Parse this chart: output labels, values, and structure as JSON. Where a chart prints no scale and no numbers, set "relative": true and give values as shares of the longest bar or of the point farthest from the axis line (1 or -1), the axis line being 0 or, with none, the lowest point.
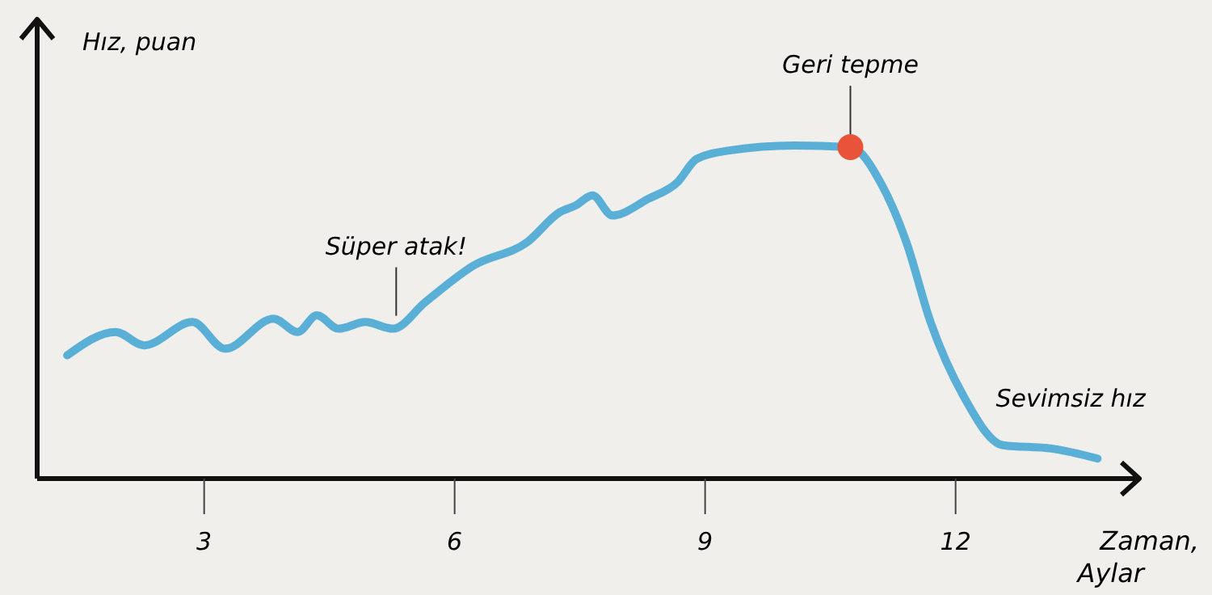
{
  "chart_data": {
    "type": "line",
    "relative": true,
    "ylabel": "Hız, puan",
    "xlabel": "Zaman, Aylar",
    "xlim": [
      1,
      14.2
    ],
    "xticks": [
      3,
      6,
      9,
      12
    ],
    "series": [
      {
        "marker": "none",
        "color": "#5aafd6",
        "x": [
          1.36,
          1.94,
          2.28,
          2.86,
          3.25,
          3.83,
          4.12,
          4.35,
          4.61,
          4.93,
          5.26,
          5.65,
          6.23,
          6.87,
          7.26,
          7.45,
          7.65,
          7.89,
          8.32,
          8.67,
          8.9,
          9.29,
          10.06,
          10.74,
          11.12,
          11.41,
          11.7,
          12.09,
          12.57,
          13.15,
          13.7
        ],
        "values": [
          0.37,
          0.44,
          0.4,
          0.47,
          0.39,
          0.48,
          0.44,
          0.49,
          0.45,
          0.47,
          0.45,
          0.53,
          0.64,
          0.71,
          0.8,
          0.82,
          0.85,
          0.79,
          0.84,
          0.89,
          0.96,
          0.985,
          1.0,
          0.995,
          0.88,
          0.71,
          0.47,
          0.25,
          0.1,
          0.09,
          0.06
        ]
      },
      {
        "type": "scatter",
        "marker": "circle",
        "color": "#e8533a",
        "x": [
          10.74
        ],
        "values": [
          0.995
        ]
      }
    ],
    "annotations": [
      {
        "text": "Süper atak!",
        "x": 5.3,
        "y": 0.45
      },
      {
        "text": "Geri tepme",
        "x": 10.74,
        "y": 0.995
      },
      {
        "text": "Sevimsiz hız",
        "x": 13.5,
        "y": 0.1
      }
    ]
  }
}
